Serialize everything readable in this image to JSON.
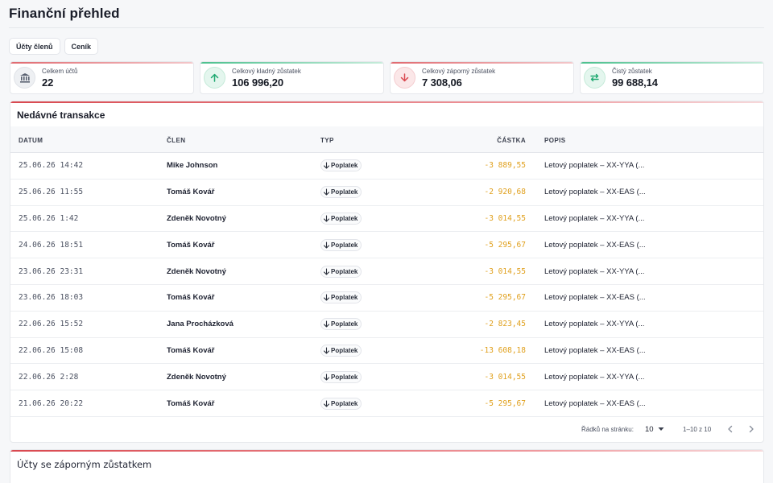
{
  "page": {
    "title": "Finanční přehled"
  },
  "tabs": [
    {
      "label": "Účty členů"
    },
    {
      "label": "Ceník"
    }
  ],
  "kpis": [
    {
      "label": "Celkem účtů",
      "value": "22",
      "icon": "bank-icon",
      "color": "#596070"
    },
    {
      "label": "Celkový kladný zůstatek",
      "value": "106 996,20",
      "icon": "arrow-up-icon",
      "color": "#1fa971"
    },
    {
      "label": "Celkový záporný zůstatek",
      "value": "7 308,06",
      "icon": "arrow-down-icon",
      "color": "#d9484f"
    },
    {
      "label": "Čistý zůstatek",
      "value": "99 688,14",
      "icon": "swap-icon",
      "color": "#1fa971"
    }
  ],
  "transactions": {
    "title": "Nedávné transakce",
    "headers": {
      "date": "DATUM",
      "member": "ČLEN",
      "type": "TYP",
      "amount": "ČÁSTKA",
      "description": "POPIS"
    },
    "rows": [
      {
        "date": "25.06.26 14:42",
        "member": "Mike Johnson",
        "type": "Poplatek",
        "amount": "-3 889,55",
        "description": "Letový poplatek – XX-YYA (..."
      },
      {
        "date": "25.06.26 11:55",
        "member": "Tomáš Kovář",
        "type": "Poplatek",
        "amount": "-2 920,68",
        "description": "Letový poplatek – XX-EAS (..."
      },
      {
        "date": "25.06.26 1:42",
        "member": "Zdeněk Novotný",
        "type": "Poplatek",
        "amount": "-3 014,55",
        "description": "Letový poplatek – XX-YYA (..."
      },
      {
        "date": "24.06.26 18:51",
        "member": "Tomáš Kovář",
        "type": "Poplatek",
        "amount": "-5 295,67",
        "description": "Letový poplatek – XX-EAS (..."
      },
      {
        "date": "23.06.26 23:31",
        "member": "Zdeněk Novotný",
        "type": "Poplatek",
        "amount": "-3 014,55",
        "description": "Letový poplatek – XX-YYA (..."
      },
      {
        "date": "23.06.26 18:03",
        "member": "Tomáš Kovář",
        "type": "Poplatek",
        "amount": "-5 295,67",
        "description": "Letový poplatek – XX-EAS (..."
      },
      {
        "date": "22.06.26 15:52",
        "member": "Jana Procházková",
        "type": "Poplatek",
        "amount": "-2 823,45",
        "description": "Letový poplatek – XX-YYA (..."
      },
      {
        "date": "22.06.26 15:08",
        "member": "Tomáš Kovář",
        "type": "Poplatek",
        "amount": "-13 608,18",
        "description": "Letový poplatek – XX-EAS (..."
      },
      {
        "date": "22.06.26 2:28",
        "member": "Zdeněk Novotný",
        "type": "Poplatek",
        "amount": "-3 014,55",
        "description": "Letový poplatek – XX-YYA (..."
      },
      {
        "date": "21.06.26 20:22",
        "member": "Tomáš Kovář",
        "type": "Poplatek",
        "amount": "-5 295,67",
        "description": "Letový poplatek – XX-EAS (..."
      }
    ],
    "pagination": {
      "rows_label": "Řádků na stránku:",
      "rows_per_page": "10",
      "range": "1–10 z 10"
    }
  },
  "negative_accounts": {
    "title": "Účty se záporným zůstatkem"
  }
}
